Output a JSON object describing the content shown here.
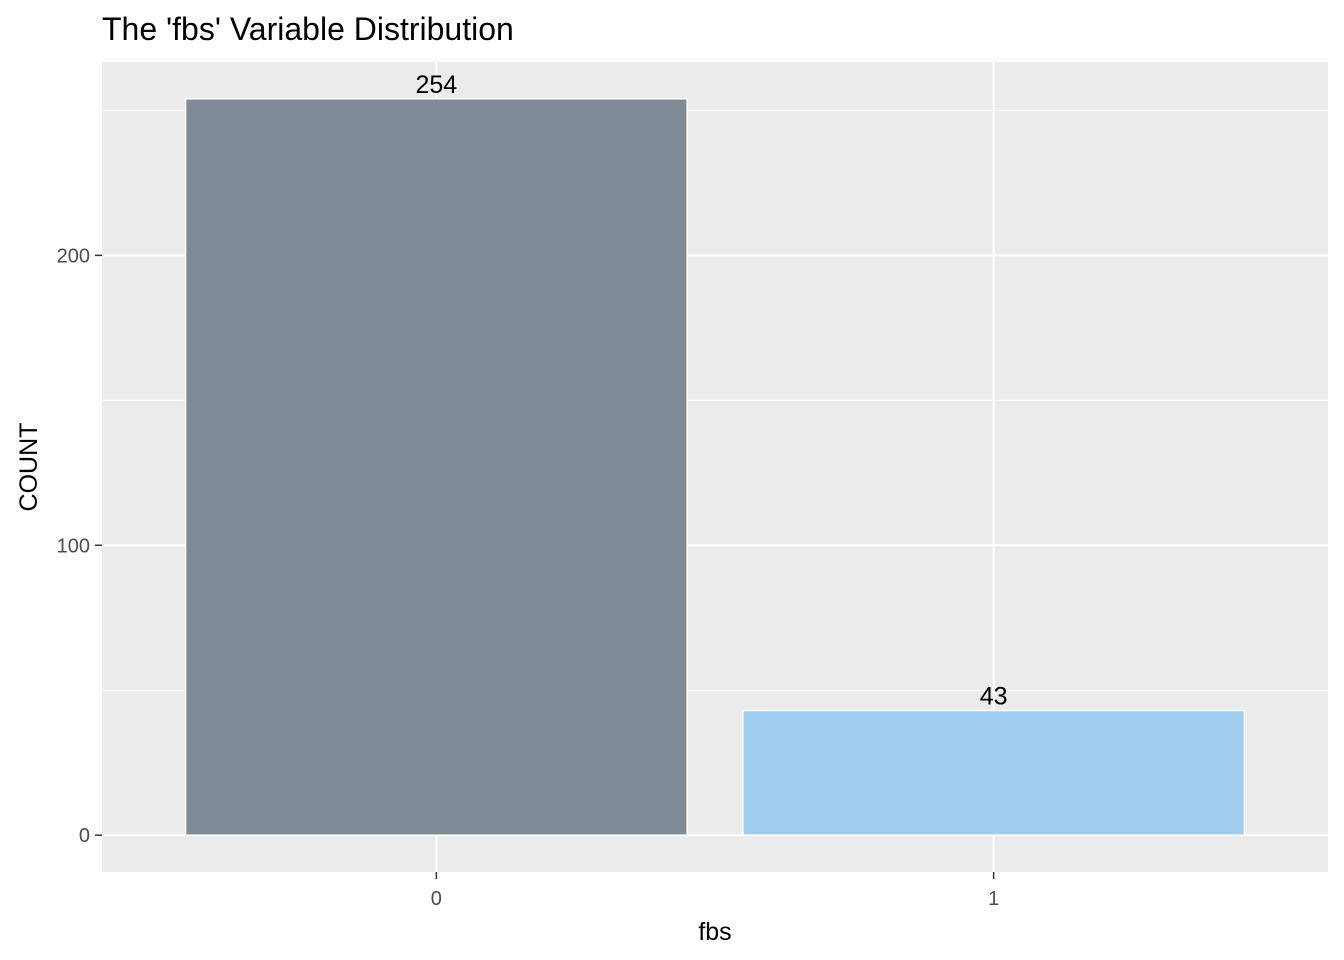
{
  "chart_data": {
    "type": "bar",
    "title": "The 'fbs' Variable Distribution",
    "xlabel": "fbs",
    "ylabel": "COUNT",
    "categories": [
      "0",
      "1"
    ],
    "values": [
      254,
      43
    ],
    "data_labels": [
      "254",
      "43"
    ],
    "bar_colors": [
      "#808b96",
      "#a1cdf0"
    ],
    "ylim": [
      -12.7,
      266.7
    ],
    "yticks": [
      0,
      100,
      200
    ],
    "ytick_labels": [
      "0",
      "100",
      "200"
    ],
    "grid": true,
    "panel_color": "#ebebeb",
    "grid_color": "#ffffff"
  }
}
